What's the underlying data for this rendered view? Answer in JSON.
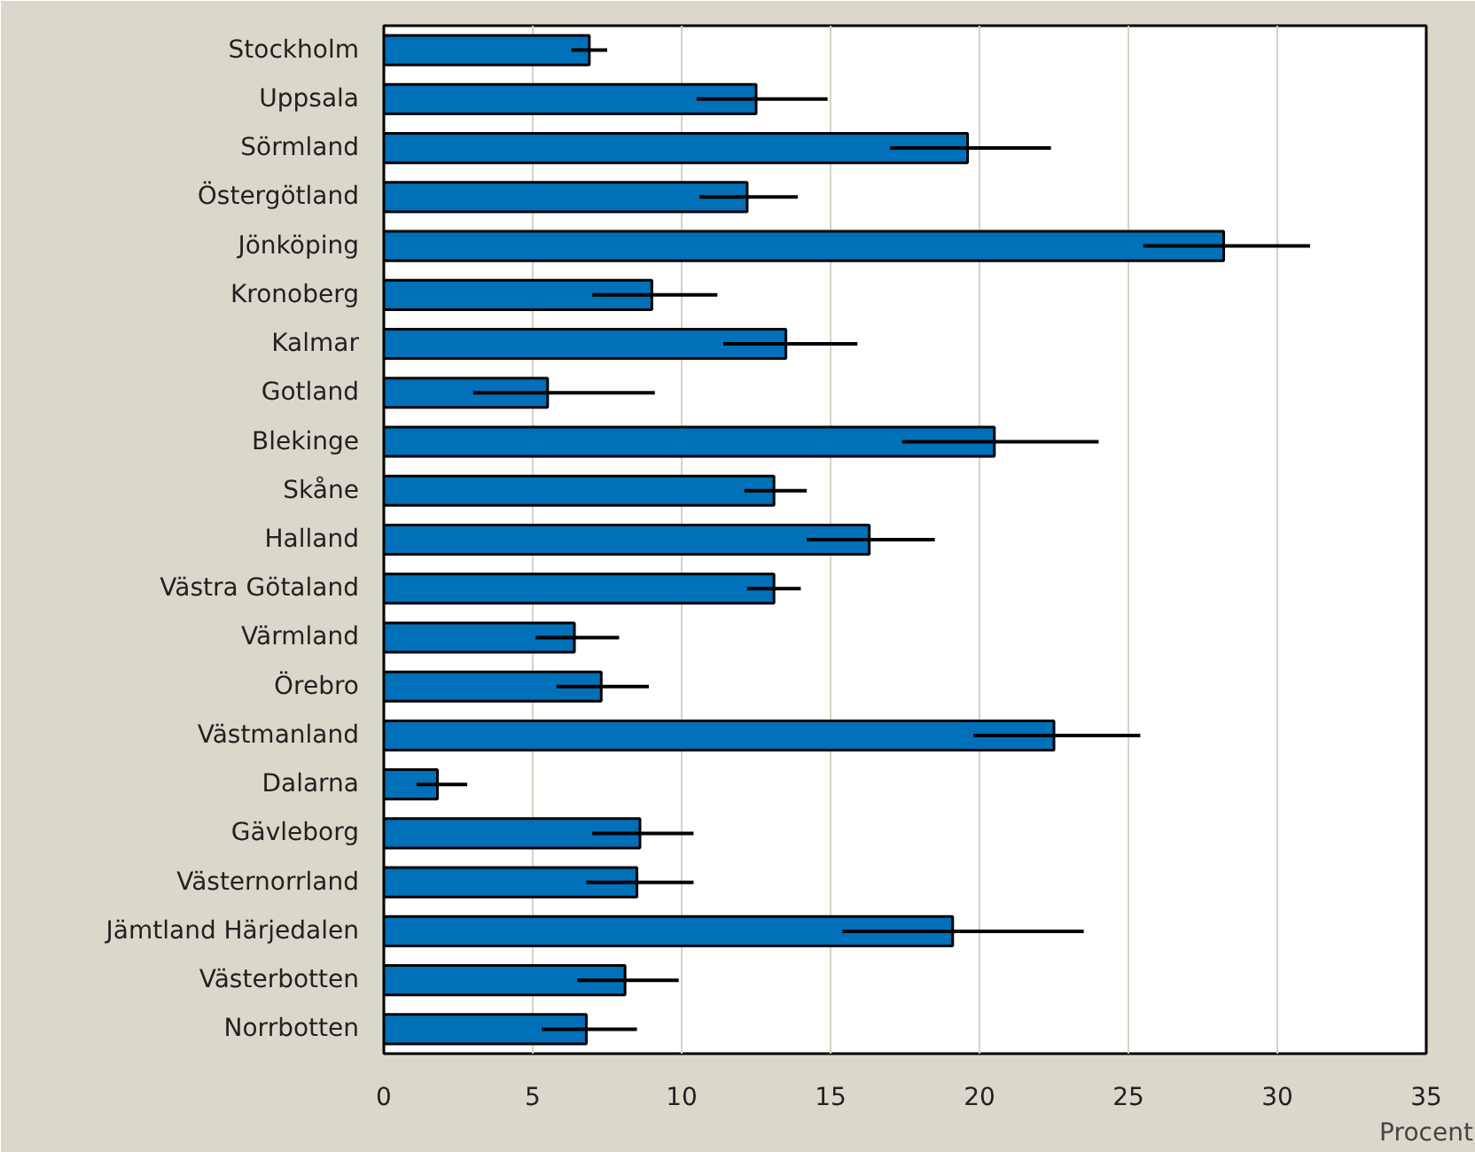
{
  "chart_data": {
    "type": "bar",
    "orientation": "horizontal",
    "xlabel": "Procent",
    "categories": [
      "Stockholm",
      "Uppsala",
      "Sörmland",
      "Östergötland",
      "Jönköping",
      "Kronoberg",
      "Kalmar",
      "Gotland",
      "Blekinge",
      "Skåne",
      "Halland",
      "Västra Götaland",
      "Värmland",
      "Örebro",
      "Västmanland",
      "Dalarna",
      "Gävleborg",
      "Västernorrland",
      "Jämtland Härjedalen",
      "Västerbotten",
      "Norrbotten"
    ],
    "values": [
      6.9,
      12.5,
      19.6,
      12.2,
      28.2,
      9.0,
      13.5,
      5.5,
      20.5,
      13.1,
      16.3,
      13.1,
      6.4,
      7.3,
      22.5,
      1.8,
      8.6,
      8.5,
      19.1,
      8.1,
      6.8
    ],
    "errors": [
      [
        6.3,
        7.5
      ],
      [
        10.5,
        14.9
      ],
      [
        17.0,
        22.4
      ],
      [
        10.6,
        13.9
      ],
      [
        25.5,
        31.1
      ],
      [
        7.0,
        11.2
      ],
      [
        11.4,
        15.9
      ],
      [
        3.0,
        9.1
      ],
      [
        17.4,
        24.0
      ],
      [
        12.1,
        14.2
      ],
      [
        14.2,
        18.5
      ],
      [
        12.2,
        14.0
      ],
      [
        5.1,
        7.9
      ],
      [
        5.8,
        8.9
      ],
      [
        19.8,
        25.4
      ],
      [
        1.1,
        2.8
      ],
      [
        7.0,
        10.4
      ],
      [
        6.8,
        10.4
      ],
      [
        15.4,
        23.5
      ],
      [
        6.5,
        9.9
      ],
      [
        5.3,
        8.5
      ]
    ],
    "color": "#0070b8",
    "xlim": [
      0,
      35
    ],
    "xticks": [
      0,
      5,
      10,
      15,
      20,
      25,
      30,
      35
    ],
    "grid": "x"
  }
}
